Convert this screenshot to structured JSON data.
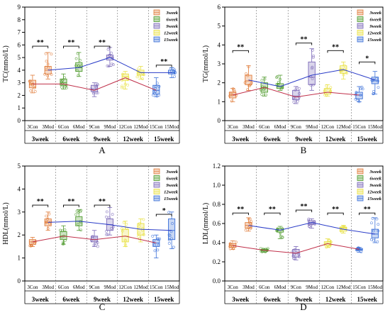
{
  "colors": {
    "3week": "#e07b39",
    "6week": "#4e9a2c",
    "9week": "#7b68b8",
    "12week": "#e8e040",
    "15week": "#3a6fd8",
    "con_line": "#c0304a",
    "mod_line": "#2a3cc8"
  },
  "legend": [
    "3week",
    "6week",
    "9week",
    "12week",
    "15week"
  ],
  "chart_data": [
    {
      "panel": "A",
      "type": "box",
      "ylabel": "TC(mmol/L)",
      "ylim": [
        0,
        9
      ],
      "yticks": [
        0,
        1,
        2,
        3,
        4,
        5,
        6,
        7,
        8,
        9
      ],
      "categories": [
        "3Con",
        "3Mod",
        "6Con",
        "6Mod",
        "9Con",
        "9Mod",
        "12Con",
        "12Mod",
        "15Con",
        "15Mod"
      ],
      "groups": [
        "3week",
        "6week",
        "9week",
        "12week",
        "15week"
      ],
      "boxes": [
        {
          "min": 2.2,
          "q1": 2.6,
          "median": 2.9,
          "q3": 3.2,
          "max": 3.6,
          "mean": 2.9
        },
        {
          "min": 3.3,
          "q1": 3.7,
          "median": 4.0,
          "q3": 4.3,
          "max": 5.4,
          "mean": 4.0
        },
        {
          "min": 2.5,
          "q1": 2.8,
          "median": 3.0,
          "q3": 3.3,
          "max": 3.7,
          "mean": 2.9
        },
        {
          "min": 3.5,
          "q1": 3.9,
          "median": 4.2,
          "q3": 4.6,
          "max": 5.4,
          "mean": 4.2
        },
        {
          "min": 1.9,
          "q1": 2.3,
          "median": 2.5,
          "q3": 2.8,
          "max": 3.0,
          "mean": 2.4
        },
        {
          "min": 4.3,
          "q1": 4.8,
          "median": 5.0,
          "q3": 5.2,
          "max": 5.8,
          "mean": 5.0
        },
        {
          "min": 2.5,
          "q1": 3.2,
          "median": 3.5,
          "q3": 3.7,
          "max": 3.9,
          "mean": 3.4
        },
        {
          "min": 3.3,
          "q1": 3.6,
          "median": 3.8,
          "q3": 4.0,
          "max": 4.3,
          "mean": 3.8
        },
        {
          "min": 1.9,
          "q1": 2.1,
          "median": 2.4,
          "q3": 2.8,
          "max": 3.4,
          "mean": 2.4
        },
        {
          "min": 3.4,
          "q1": 3.7,
          "median": 3.8,
          "q3": 4.0,
          "max": 4.2,
          "mean": 3.8
        }
      ],
      "sig": [
        {
          "pair": [
            0,
            1
          ],
          "y": 5.9,
          "label": "**"
        },
        {
          "pair": [
            2,
            3
          ],
          "y": 5.9,
          "label": "**"
        },
        {
          "pair": [
            4,
            5
          ],
          "y": 5.9,
          "label": "**"
        },
        {
          "pair": [
            8,
            9
          ],
          "y": 4.4,
          "label": "**"
        }
      ],
      "xgroups": [
        "3week",
        "6week",
        "9week",
        "12week",
        "15week"
      ],
      "plabel": "A"
    },
    {
      "panel": "B",
      "type": "box",
      "ylabel": "TG(mmol/L)",
      "ylim": [
        0,
        6
      ],
      "yticks": [
        0,
        1,
        2,
        3,
        4,
        5,
        6
      ],
      "categories": [
        "3Con",
        "3Mod",
        "6Con",
        "6Mod",
        "9Con",
        "9Mod",
        "12Con",
        "12Mod",
        "15Con",
        "15Mod"
      ],
      "groups": [
        "3week",
        "6week",
        "9week",
        "12week",
        "15week"
      ],
      "boxes": [
        {
          "min": 1.0,
          "q1": 1.2,
          "median": 1.35,
          "q3": 1.5,
          "max": 1.7,
          "mean": 1.35
        },
        {
          "min": 1.6,
          "q1": 1.9,
          "median": 2.1,
          "q3": 2.4,
          "max": 2.9,
          "mean": 2.15
        },
        {
          "min": 1.3,
          "q1": 1.5,
          "median": 1.75,
          "q3": 2.0,
          "max": 2.3,
          "mean": 1.75
        },
        {
          "min": 1.6,
          "q1": 1.7,
          "median": 1.8,
          "q3": 1.95,
          "max": 2.4,
          "mean": 1.8
        },
        {
          "min": 0.9,
          "q1": 1.1,
          "median": 1.3,
          "q3": 1.6,
          "max": 1.8,
          "mean": 1.25
        },
        {
          "min": 1.6,
          "q1": 1.9,
          "median": 2.3,
          "q3": 3.1,
          "max": 3.8,
          "mean": 2.4
        },
        {
          "min": 1.3,
          "q1": 1.4,
          "median": 1.5,
          "q3": 1.7,
          "max": 1.9,
          "mean": 1.5
        },
        {
          "min": 2.2,
          "q1": 2.5,
          "median": 2.65,
          "q3": 2.9,
          "max": 3.1,
          "mean": 2.7
        },
        {
          "min": 1.0,
          "q1": 1.15,
          "median": 1.35,
          "q3": 1.5,
          "max": 1.8,
          "mean": 1.35
        },
        {
          "min": 1.4,
          "q1": 1.95,
          "median": 2.1,
          "q3": 2.3,
          "max": 2.6,
          "mean": 2.15
        }
      ],
      "sig": [
        {
          "pair": [
            0,
            1
          ],
          "y": 3.7,
          "label": "**"
        },
        {
          "pair": [
            4,
            5
          ],
          "y": 4.1,
          "label": "**"
        },
        {
          "pair": [
            6,
            7
          ],
          "y": 3.7,
          "label": "**"
        },
        {
          "pair": [
            8,
            9
          ],
          "y": 3.1,
          "label": "*"
        }
      ],
      "xgroups": [
        "3week",
        "6week",
        "9week",
        "12week",
        "15week"
      ],
      "plabel": "B"
    },
    {
      "panel": "C",
      "type": "box",
      "ylabel": "HDL(mmol/L)",
      "ylim": [
        0,
        5
      ],
      "yticks": [
        0,
        1,
        2,
        3,
        4,
        5
      ],
      "categories": [
        "3Con",
        "3Mod",
        "6Con",
        "6Mod",
        "9Con",
        "9Mod",
        "12Con",
        "12Mod",
        "15Con",
        "15Mod"
      ],
      "groups": [
        "3week",
        "6week",
        "9week",
        "12week",
        "15week"
      ],
      "boxes": [
        {
          "min": 1.5,
          "q1": 1.6,
          "median": 1.7,
          "q3": 1.8,
          "max": 1.9,
          "mean": 1.7
        },
        {
          "min": 2.2,
          "q1": 2.4,
          "median": 2.55,
          "q3": 2.7,
          "max": 3.0,
          "mean": 2.55
        },
        {
          "min": 1.6,
          "q1": 1.8,
          "median": 1.95,
          "q3": 2.15,
          "max": 2.4,
          "mean": 1.95
        },
        {
          "min": 2.2,
          "q1": 2.4,
          "median": 2.6,
          "q3": 2.8,
          "max": 3.1,
          "mean": 2.6
        },
        {
          "min": 1.5,
          "q1": 1.7,
          "median": 1.8,
          "q3": 1.95,
          "max": 2.2,
          "mean": 1.8
        },
        {
          "min": 2.0,
          "q1": 2.2,
          "median": 2.45,
          "q3": 2.7,
          "max": 3.2,
          "mean": 2.45
        },
        {
          "min": 1.5,
          "q1": 1.7,
          "median": 1.95,
          "q3": 2.25,
          "max": 2.6,
          "mean": 1.95
        },
        {
          "min": 1.7,
          "q1": 2.0,
          "median": 2.25,
          "q3": 2.5,
          "max": 2.7,
          "mean": 2.25
        },
        {
          "min": 1.0,
          "q1": 1.5,
          "median": 1.65,
          "q3": 1.8,
          "max": 2.0,
          "mean": 1.65
        },
        {
          "min": 1.4,
          "q1": 1.8,
          "median": 2.2,
          "q3": 2.7,
          "max": 3.0,
          "mean": 2.2
        }
      ],
      "sig": [
        {
          "pair": [
            0,
            1
          ],
          "y": 3.3,
          "label": "**"
        },
        {
          "pair": [
            2,
            3
          ],
          "y": 3.3,
          "label": "**"
        },
        {
          "pair": [
            4,
            5
          ],
          "y": 3.3,
          "label": "**"
        },
        {
          "pair": [
            8,
            9
          ],
          "y": 2.9,
          "label": "*"
        }
      ],
      "xgroups": [
        "3week",
        "6week",
        "9week",
        "12week",
        "15week"
      ],
      "plabel": "C"
    },
    {
      "panel": "D",
      "type": "box",
      "ylabel": "LDL(mmol/L)",
      "ylim": [
        0,
        1.2
      ],
      "yticks": [
        0,
        0.2,
        0.4,
        0.6,
        0.8,
        1.0,
        1.2
      ],
      "ytick_labels": [
        "0.0",
        "0.2",
        "0.4",
        "0.6",
        "0.8",
        "1.0",
        "1.2"
      ],
      "categories": [
        "3Con",
        "3Mod",
        "6Con",
        "6Mod",
        "9Con",
        "9Mod",
        "12Con",
        "12Mod",
        "15Con",
        "15Mod"
      ],
      "groups": [
        "3week",
        "6week",
        "9week",
        "12week",
        "15week"
      ],
      "boxes": [
        {
          "min": 0.33,
          "q1": 0.35,
          "median": 0.37,
          "q3": 0.39,
          "max": 0.42,
          "mean": 0.37
        },
        {
          "min": 0.52,
          "q1": 0.55,
          "median": 0.58,
          "q3": 0.61,
          "max": 0.66,
          "mean": 0.58
        },
        {
          "min": 0.3,
          "q1": 0.31,
          "median": 0.32,
          "q3": 0.33,
          "max": 0.34,
          "mean": 0.32
        },
        {
          "min": 0.44,
          "q1": 0.51,
          "median": 0.53,
          "q3": 0.55,
          "max": 0.57,
          "mean": 0.53
        },
        {
          "min": 0.22,
          "q1": 0.25,
          "median": 0.29,
          "q3": 0.33,
          "max": 0.36,
          "mean": 0.29
        },
        {
          "min": 0.55,
          "q1": 0.59,
          "median": 0.61,
          "q3": 0.63,
          "max": 0.65,
          "mean": 0.61
        },
        {
          "min": 0.35,
          "q1": 0.37,
          "median": 0.39,
          "q3": 0.41,
          "max": 0.44,
          "mean": 0.39
        },
        {
          "min": 0.5,
          "q1": 0.52,
          "median": 0.54,
          "q3": 0.56,
          "max": 0.58,
          "mean": 0.54
        },
        {
          "min": 0.3,
          "q1": 0.32,
          "median": 0.33,
          "q3": 0.34,
          "max": 0.35,
          "mean": 0.33
        },
        {
          "min": 0.4,
          "q1": 0.45,
          "median": 0.49,
          "q3": 0.54,
          "max": 0.66,
          "mean": 0.49
        }
      ],
      "sig": [
        {
          "pair": [
            0,
            1
          ],
          "y": 0.71,
          "label": "**"
        },
        {
          "pair": [
            2,
            3
          ],
          "y": 0.71,
          "label": "**"
        },
        {
          "pair": [
            4,
            5
          ],
          "y": 0.74,
          "label": "**"
        },
        {
          "pair": [
            6,
            7
          ],
          "y": 0.71,
          "label": "**"
        },
        {
          "pair": [
            8,
            9
          ],
          "y": 0.71,
          "label": "**"
        }
      ],
      "xgroups": [
        "3week",
        "6week",
        "9week",
        "12week",
        "15week"
      ],
      "plabel": "D"
    }
  ]
}
